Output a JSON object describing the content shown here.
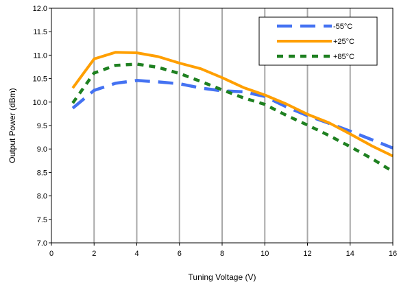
{
  "chart_data": {
    "type": "line",
    "xlabel": "Tuning Voltage (V)",
    "ylabel": "Output Power (dBm)",
    "xlim": [
      0,
      16
    ],
    "ylim": [
      7.0,
      12.0
    ],
    "x_ticks": [
      0,
      2,
      4,
      6,
      8,
      10,
      12,
      14,
      16
    ],
    "x_tick_labels": [
      "0",
      "2",
      "4",
      "6",
      "8",
      "10",
      "12",
      "14",
      "16"
    ],
    "y_ticks": [
      7.0,
      7.5,
      8.0,
      8.5,
      9.0,
      9.5,
      10.0,
      10.5,
      11.0,
      11.5,
      12.0
    ],
    "y_tick_labels": [
      "7.0",
      "7.5",
      "8.0",
      "8.5",
      "9.0",
      "9.5",
      "10.0",
      "10.5",
      "11.0",
      "11.5",
      "12.0"
    ],
    "grid": "vertical",
    "legend_position": "top-right",
    "x": [
      1,
      2,
      3,
      4,
      5,
      6,
      7,
      8,
      9,
      10,
      11,
      12,
      13,
      14,
      15,
      16
    ],
    "series": [
      {
        "name": "-55°C",
        "color": "#4472f2",
        "style": "dashed-long",
        "values": [
          9.87,
          10.25,
          10.4,
          10.46,
          10.43,
          10.39,
          10.3,
          10.24,
          10.22,
          10.12,
          9.9,
          9.71,
          9.55,
          9.38,
          9.2,
          9.02
        ]
      },
      {
        "name": "+25°C",
        "color": "#ff9f00",
        "style": "solid",
        "values": [
          10.3,
          10.92,
          11.06,
          11.05,
          10.97,
          10.83,
          10.71,
          10.52,
          10.31,
          10.15,
          9.96,
          9.74,
          9.56,
          9.32,
          9.07,
          8.85
        ]
      },
      {
        "name": "+85°C",
        "color": "#1e8020",
        "style": "dashed-short",
        "values": [
          9.98,
          10.62,
          10.78,
          10.81,
          10.74,
          10.61,
          10.44,
          10.26,
          10.09,
          9.95,
          9.72,
          9.51,
          9.29,
          9.05,
          8.8,
          8.52
        ]
      }
    ]
  }
}
